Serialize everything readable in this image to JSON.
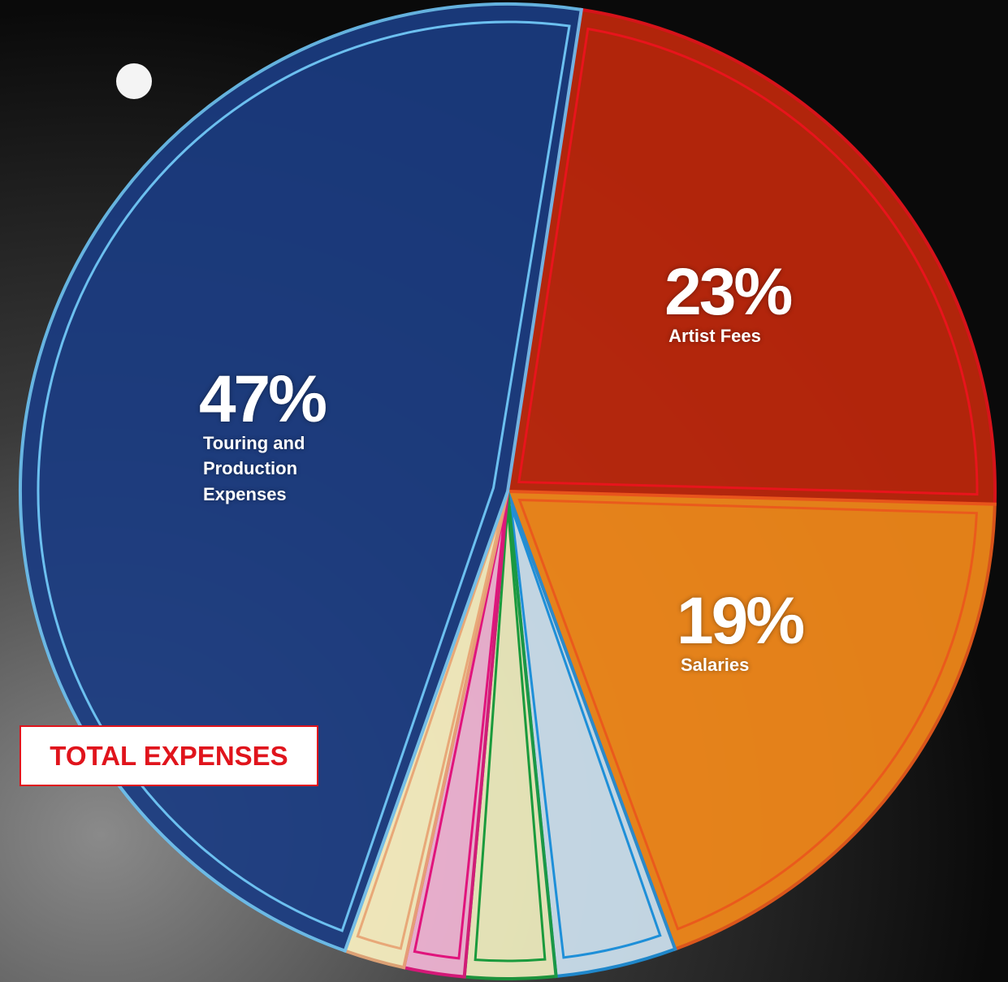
{
  "chart_data": {
    "type": "pie",
    "title": "TOTAL EXPENSES",
    "categories": [
      "Artist Fees",
      "Salaries",
      null,
      null,
      null,
      null,
      "Touring and Production Expenses"
    ],
    "values": [
      23,
      19,
      4,
      3,
      2,
      2,
      47
    ],
    "value_labels": [
      "23%",
      "19%",
      null,
      null,
      null,
      null,
      "47%"
    ],
    "colors": [
      "#c0280c",
      "#f58a1a",
      "#cfe3f1",
      "#f1efc0",
      "#f3b6d6",
      "#fbf2c2",
      "#1b3c82"
    ],
    "edge_colors": [
      "#e8141c",
      "#ea5a1c",
      "#1e8fd8",
      "#1a9a3c",
      "#e0147c",
      "#e8a878",
      "#6cc0f0"
    ]
  }
}
